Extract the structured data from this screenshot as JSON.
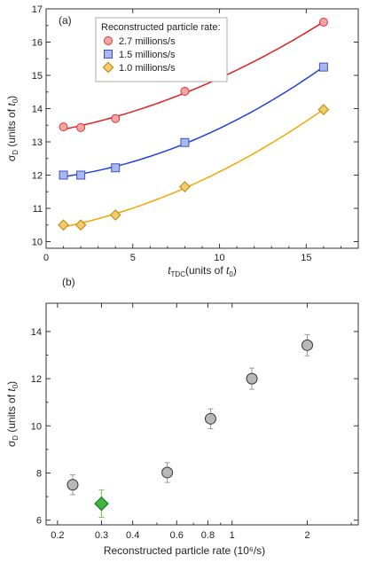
{
  "chart_data": [
    {
      "type": "line",
      "panel_label": "(a)",
      "xlabel": {
        "main": "t",
        "sub": "TDC",
        "rest": "(units of ",
        "unit": "t",
        "unit_sub": "0",
        "close": ")"
      },
      "ylabel": {
        "main": "σ",
        "sub": "D",
        "rest": " (units of ",
        "unit": "t",
        "unit_sub": "0",
        "close": ")"
      },
      "xlim": [
        0,
        18
      ],
      "ylim": [
        9.8,
        17
      ],
      "xticks": [
        "0",
        "5",
        "10",
        "15"
      ],
      "xtick_values": [
        0,
        5,
        10,
        15
      ],
      "yticks": [
        "10",
        "11",
        "12",
        "13",
        "14",
        "15",
        "16",
        "17"
      ],
      "ytick_values": [
        10,
        11,
        12,
        13,
        14,
        15,
        16,
        17
      ],
      "legend_title": "Reconstructed particle rate:",
      "legend_position": "top-left",
      "x": [
        1,
        2,
        4,
        8,
        16
      ],
      "series": [
        {
          "name": "2.7 millions/s",
          "values": [
            13.45,
            13.43,
            13.7,
            14.52,
            16.6
          ],
          "marker": "circle",
          "fill": "#f4a6a6",
          "stroke": "#e03030",
          "line": "#e02020"
        },
        {
          "name": "1.5 millions/s",
          "values": [
            12.0,
            12.0,
            12.22,
            12.98,
            15.25
          ],
          "marker": "square",
          "fill": "#aab8f0",
          "stroke": "#4050c0",
          "line": "#2040e0"
        },
        {
          "name": "1.0 millions/s",
          "values": [
            10.5,
            10.5,
            10.8,
            11.65,
            13.97
          ],
          "marker": "diamond",
          "fill": "#f2cb6c",
          "stroke": "#b8860b",
          "line": "#f0a800"
        }
      ]
    },
    {
      "type": "scatter",
      "panel_label": "(b)",
      "xlabel": "Reconstructed particle rate (10⁶/s)",
      "ylabel": {
        "main": "σ",
        "sub": "D",
        "rest": " (units of ",
        "unit": "t",
        "unit_sub": "0",
        "close": ")"
      },
      "x_scale": "log",
      "xlim": [
        0.18,
        3.2
      ],
      "ylim": [
        5.8,
        15.2
      ],
      "xticks": [
        "0.2",
        "0.3",
        "0.4",
        "0.6",
        "0.8",
        "1",
        "2"
      ],
      "xtick_values": [
        0.2,
        0.3,
        0.4,
        0.6,
        0.8,
        1,
        2
      ],
      "yticks": [
        "6",
        "8",
        "10",
        "12",
        "14"
      ],
      "ytick_values": [
        6,
        8,
        10,
        12,
        14
      ],
      "series": [
        {
          "marker": "circle",
          "fill": "#b8b8b8",
          "stroke": "#333333",
          "x": [
            0.23,
            0.55,
            0.82,
            1.2,
            2.0
          ],
          "values": [
            7.5,
            8.02,
            10.3,
            12.0,
            13.42
          ],
          "errors": [
            0.42,
            0.42,
            0.42,
            0.45,
            0.45
          ]
        },
        {
          "marker": "diamond",
          "fill": "#3cb83c",
          "stroke": "#1a5f1a",
          "x": [
            0.3
          ],
          "values": [
            6.7
          ],
          "errors": [
            0.58
          ]
        }
      ]
    }
  ]
}
